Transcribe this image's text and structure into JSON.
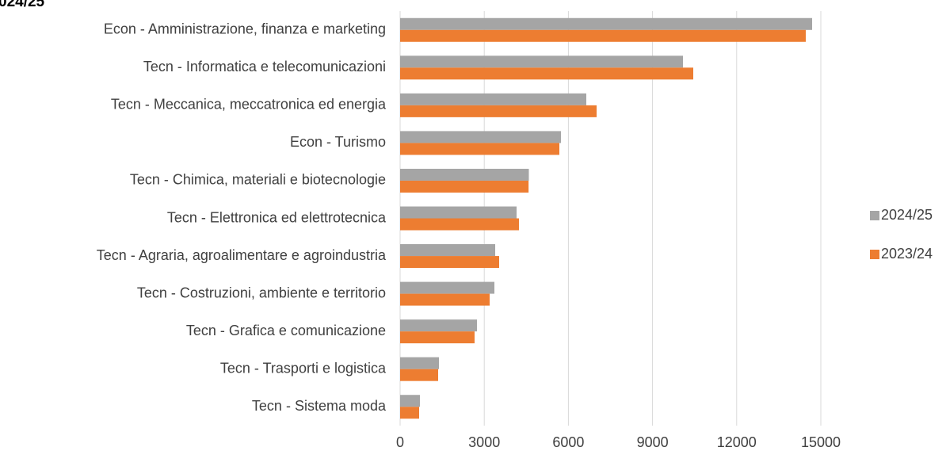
{
  "chart_data": {
    "type": "barh",
    "title": "024/25",
    "categories": [
      "Econ - Amministrazione, finanza e marketing",
      "Tecn - Informatica e telecomunicazioni",
      "Tecn - Meccanica, meccatronica ed energia",
      "Econ - Turismo",
      "Tecn - Chimica, materiali e biotecnologie",
      "Tecn - Elettronica ed elettrotecnica",
      "Tecn - Agraria, agroalimentare e agroindustria",
      "Tecn - Costruzioni, ambiente e territorio",
      "Tecn - Grafica e comunicazione",
      "Tecn - Trasporti e logistica",
      "Tecn - Sistema moda"
    ],
    "series": [
      {
        "name": "2024/25",
        "color": "#a5a5a5",
        "values": [
          14690,
          10085,
          6638,
          5734,
          4590,
          4153,
          3390,
          3362,
          2740,
          1384,
          706
        ]
      },
      {
        "name": "2023/24",
        "color": "#ed7d31",
        "values": [
          14463,
          10452,
          7006,
          5678,
          4580,
          4237,
          3531,
          3192,
          2655,
          1356,
          678
        ]
      }
    ],
    "xlim": [
      0,
      15000
    ],
    "xticks": [
      0,
      3000,
      6000,
      9000,
      12000,
      15000
    ],
    "grid": true,
    "legend": "right"
  }
}
